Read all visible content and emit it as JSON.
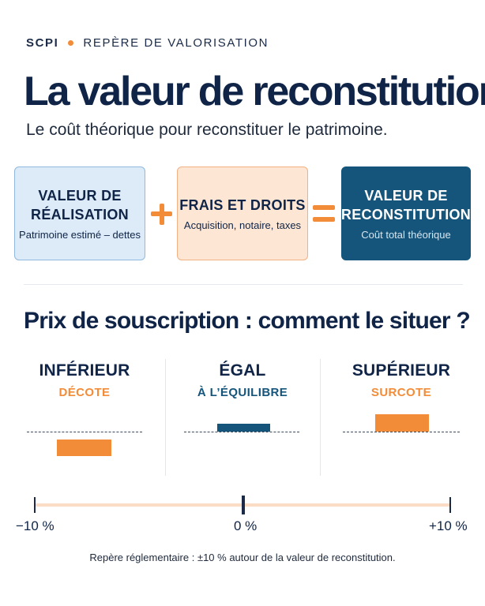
{
  "header": {
    "brand": "SCPI",
    "kicker": "REPÈRE DE VALORISATION",
    "title": "La valeur de reconstitution",
    "subtitle": "Le coût théorique pour reconstituer le patrimoine."
  },
  "formula": {
    "term1": {
      "title_line1": "VALEUR DE",
      "title_line2": "RÉALISATION",
      "subtitle": "Patrimoine estimé – dettes"
    },
    "term2": {
      "title": "FRAIS ET DROITS",
      "subtitle": "Acquisition, notaire, taxes"
    },
    "result": {
      "title_line1": "VALEUR DE",
      "title_line2": "RECONSTITUTION",
      "subtitle": "Coût total théorique"
    },
    "colors": {
      "accent": "#f28c38",
      "light_blue": "#dcebf7",
      "light_orange": "#fde6d4",
      "dark_blue": "#15557b"
    }
  },
  "section": {
    "title": "Prix de souscription : comment le situer ?",
    "cases": [
      {
        "title": "INFÉRIEUR",
        "label": "DÉCOTE",
        "label_color": "#f28c38",
        "bar_color": "#f28c38",
        "direction": "below"
      },
      {
        "title": "ÉGAL",
        "label": "À L’ÉQUILIBRE",
        "label_color": "#15557b",
        "bar_color": "#15557b",
        "direction": "at"
      },
      {
        "title": "SUPÉRIEUR",
        "label": "SURCOTE",
        "label_color": "#f28c38",
        "bar_color": "#f28c38",
        "direction": "above"
      }
    ]
  },
  "scale": {
    "min_label": "−10 %",
    "mid_label": "0 %",
    "max_label": "+10 %"
  },
  "footnote": "Repère réglementaire : ±10 % autour de la valeur de reconstitution."
}
